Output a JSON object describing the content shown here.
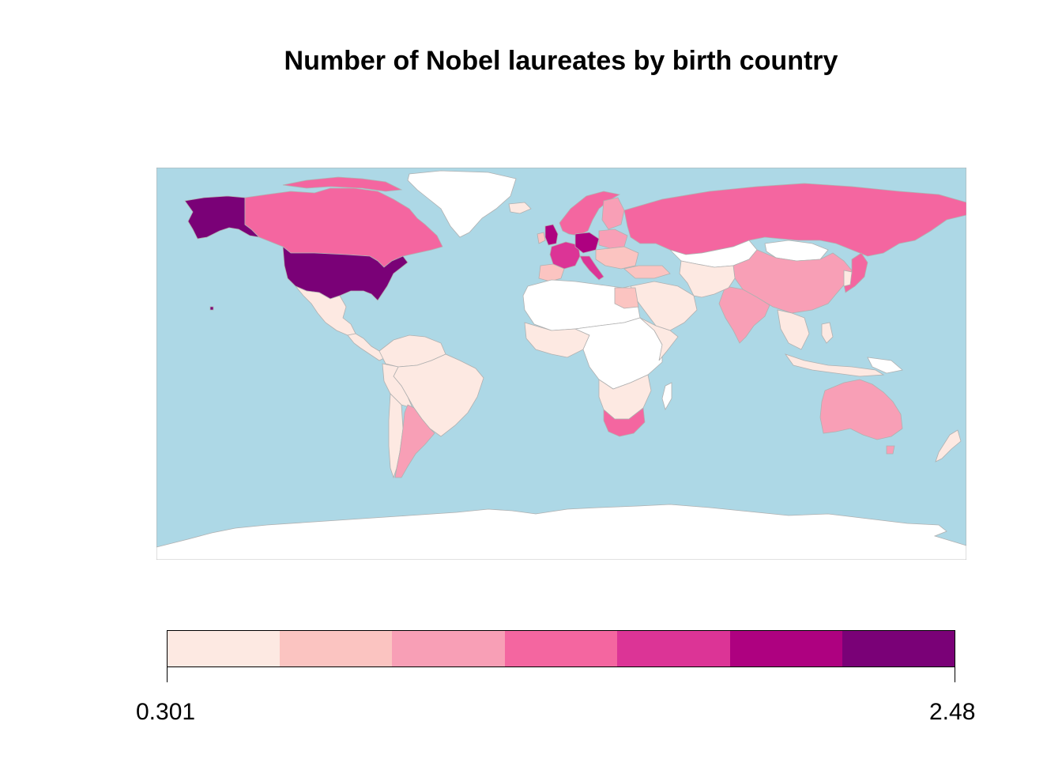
{
  "title": "Number of Nobel laureates by birth country",
  "legend": {
    "min_label": "0.301",
    "max_label": "2.48",
    "bins": [
      "#FDE9E2",
      "#FBC4C1",
      "#F89FB6",
      "#F466A0",
      "#DC3496",
      "#AE0180",
      "#7A0177"
    ]
  },
  "colors": {
    "ocean": "#ADD8E6",
    "no_data": "#FFFFFF",
    "border": "#B0B0B0"
  },
  "map_data": {
    "type": "choropleth",
    "scale": "log10 count",
    "regions": [
      {
        "name": "United States",
        "class": 7
      },
      {
        "name": "Alaska",
        "class": 7
      },
      {
        "name": "United Kingdom",
        "class": 6
      },
      {
        "name": "Germany",
        "class": 6
      },
      {
        "name": "France",
        "class": 5
      },
      {
        "name": "Canada",
        "class": 4
      },
      {
        "name": "Russia",
        "class": 4
      },
      {
        "name": "Japan",
        "class": 4
      },
      {
        "name": "Sweden",
        "class": 4
      },
      {
        "name": "South Africa",
        "class": 4
      },
      {
        "name": "China",
        "class": 3
      },
      {
        "name": "India",
        "class": 3
      },
      {
        "name": "Australia",
        "class": 3
      },
      {
        "name": "Argentina",
        "class": 3
      },
      {
        "name": "Egypt",
        "class": 2
      },
      {
        "name": "Brazil",
        "class": 1
      },
      {
        "name": "Mexico",
        "class": 1
      },
      {
        "name": "Greenland",
        "class": 0
      },
      {
        "name": "Antarctica",
        "class": 0
      }
    ]
  }
}
